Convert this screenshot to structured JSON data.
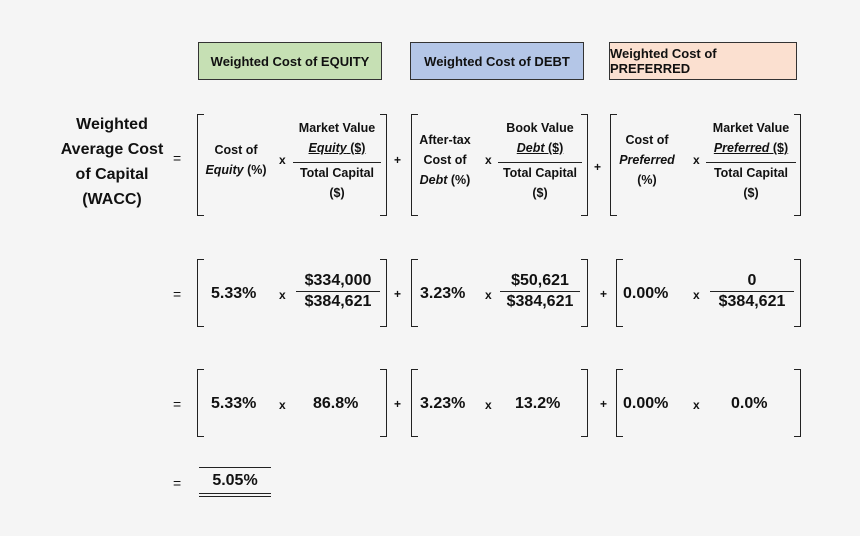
{
  "colors": {
    "equity": "#c6e0b4",
    "debt": "#b4c6e7",
    "preferred": "#fbe0d0",
    "background": "#f5f5f5"
  },
  "headers": {
    "equity": "Weighted Cost of EQUITY",
    "debt": "Weighted Cost of DEBT",
    "preferred": "Weighted Cost of PREFERRED"
  },
  "title": {
    "l1": "Weighted",
    "l2": "Average Cost",
    "l3": "of Capital",
    "l4": "(WACC)"
  },
  "symbols": {
    "eq": "=",
    "plus": "+",
    "times": "x"
  },
  "formula": {
    "equity": {
      "cost_l1": "Cost of",
      "cost_l2a": "Equity",
      "cost_l2b": " (%)",
      "num_l1": "Market Value",
      "num_l2a": "Equity",
      "num_l2b": " ($)",
      "den_l1": "Total Capital",
      "den_l2": "($)"
    },
    "debt": {
      "cost_l1": "After-tax",
      "cost_l2": "Cost of",
      "cost_l3a": "Debt",
      "cost_l3b": " (%)",
      "num_l1": "Book Value",
      "num_l2a": "Debt",
      "num_l2b": " ($)",
      "den_l1": "Total Capital",
      "den_l2": "($)"
    },
    "preferred": {
      "cost_l1": "Cost of",
      "cost_l2": "Preferred",
      "cost_l3": "(%)",
      "num_l1": "Market Value",
      "num_l2a": "Preferred",
      "num_l2b": " ($)",
      "den_l1": "Total Capital",
      "den_l2": "($)"
    }
  },
  "row2": {
    "equity_rate": "5.33%",
    "equity_num": "$334,000",
    "equity_den": "$384,621",
    "debt_rate": "3.23%",
    "debt_num": "$50,621",
    "debt_den": "$384,621",
    "pref_rate": "0.00%",
    "pref_num": "0",
    "pref_den": "$384,621"
  },
  "row3": {
    "equity_rate": "5.33%",
    "equity_weight": "86.8%",
    "debt_rate": "3.23%",
    "debt_weight": "13.2%",
    "pref_rate": "0.00%",
    "pref_weight": "0.0%"
  },
  "result": "5.05%"
}
